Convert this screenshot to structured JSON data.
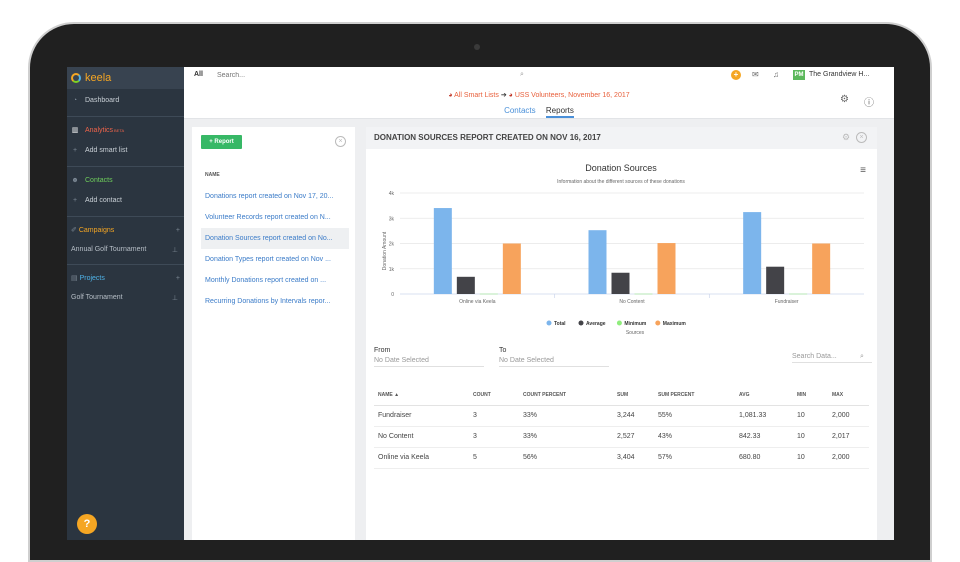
{
  "sidebar": {
    "brand": "keela",
    "items": [
      {
        "icon": "tachometer-icon",
        "label": "Dashboard"
      },
      {
        "icon": "bar-chart-icon",
        "label": "Analytics",
        "badge": "BETA"
      },
      {
        "icon": "plus-icon",
        "label": "Add smart list"
      },
      {
        "icon": "users-icon",
        "label": "Contacts"
      },
      {
        "icon": "plus-icon",
        "label": "Add contact"
      },
      {
        "icon": "megaphone-icon",
        "label": "Campaigns"
      },
      {
        "icon": "pin-icon",
        "label": "Annual Golf Tournament"
      },
      {
        "icon": "book-icon",
        "label": "Projects"
      },
      {
        "icon": "pin-icon",
        "label": "Golf Tournament"
      }
    ],
    "help": "?"
  },
  "topbar": {
    "scope": "All",
    "search_placeholder": "Search...",
    "org_badge": "PM",
    "org_name": "The Grandview H...",
    "breadcrumb_root": "All Smart Lists",
    "breadcrumb_arrow": "➔",
    "breadcrumb_current": "USS Volunteers, November 16, 2017",
    "tabs": [
      "Contacts",
      "Reports"
    ]
  },
  "reports_list": {
    "add_label": "+ Report",
    "column": "NAME",
    "items": [
      "Donations report created on Nov 17, 20...",
      "Volunteer Records report created on N...",
      "Donation Sources report created on No...",
      "Donation Types report created on Nov ...",
      "Monthly Donations report created on ...",
      "Recurring Donations by Intervals repor..."
    ]
  },
  "report": {
    "title": "DONATION SOURCES REPORT CREATED ON NOV 16, 2017",
    "menu_icon": "hamburger-icon",
    "filters": {
      "from_label": "From",
      "from_value": "No Date Selected",
      "to_label": "To",
      "to_value": "No Date Selected",
      "search_placeholder": "Search Data..."
    },
    "table": {
      "headers": [
        "NAME ▲",
        "COUNT",
        "COUNT PERCENT",
        "SUM",
        "SUM PERCENT",
        "AVG",
        "MIN",
        "MAX"
      ],
      "rows": [
        [
          "Fundraiser",
          "3",
          "33%",
          "3,244",
          "55%",
          "1,081.33",
          "10",
          "2,000"
        ],
        [
          "No Content",
          "3",
          "33%",
          "2,527",
          "43%",
          "842.33",
          "10",
          "2,017"
        ],
        [
          "Online via Keela",
          "5",
          "56%",
          "3,404",
          "57%",
          "680.80",
          "10",
          "2,000"
        ]
      ]
    }
  },
  "chart_data": {
    "type": "bar",
    "title": "Donation Sources",
    "subtitle": "Information about the different sources of these donations",
    "xlabel": "Sources",
    "ylabel": "Donation Amount",
    "ylim": [
      0,
      4000
    ],
    "yticks": [
      "0",
      "1k",
      "2k",
      "3k",
      "4k"
    ],
    "categories": [
      "Online via Keela",
      "No Content",
      "Fundraiser"
    ],
    "series": [
      {
        "name": "Total",
        "color": "#7cb5ec",
        "values": [
          3404,
          2527,
          3244
        ]
      },
      {
        "name": "Average",
        "color": "#434348",
        "values": [
          681,
          842,
          1081
        ]
      },
      {
        "name": "Minimum",
        "color": "#90ed7d",
        "values": [
          10,
          10,
          10
        ]
      },
      {
        "name": "Maximum",
        "color": "#f7a35c",
        "values": [
          2000,
          2017,
          2000
        ]
      }
    ],
    "legend": "bottom",
    "grid": true
  }
}
